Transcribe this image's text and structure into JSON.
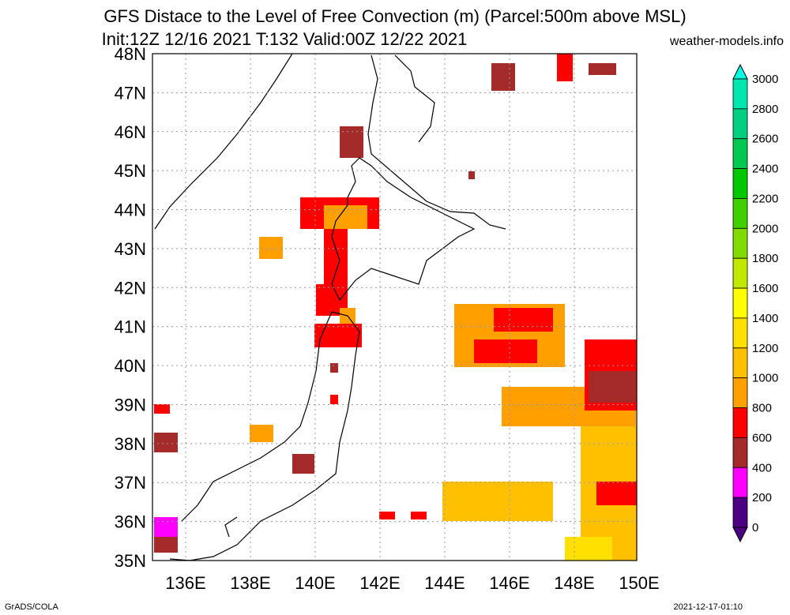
{
  "title_line1": "GFS Distace to the Level of Free Convection (m) (Parcel:500m above MSL)",
  "title_line2": "Init:12Z 12/16 2021 T:132 Valid:00Z 12/22 2021",
  "site": "weather-models.info",
  "footer_left": "GrADS/COLA",
  "footer_right": "2021-12-17-01:10",
  "lat_labels": [
    "48N",
    "47N",
    "46N",
    "45N",
    "44N",
    "43N",
    "42N",
    "41N",
    "40N",
    "39N",
    "38N",
    "37N",
    "36N",
    "35N"
  ],
  "lon_labels": [
    "136E",
    "138E",
    "140E",
    "142E",
    "144E",
    "146E",
    "148E",
    "150E"
  ],
  "colorbar": {
    "labels": [
      "3000",
      "2800",
      "2600",
      "2400",
      "2200",
      "2000",
      "1800",
      "1600",
      "1400",
      "1200",
      "1000",
      "800",
      "600",
      "400",
      "200",
      "0"
    ],
    "colors": [
      "#00ffe0",
      "#00e6b0",
      "#00d080",
      "#00c850",
      "#00c800",
      "#40d000",
      "#80dc00",
      "#c0e800",
      "#ffff00",
      "#ffe000",
      "#ffc000",
      "#ffa000",
      "#ff0000",
      "#a52a2a",
      "#ff00ff",
      "#4b0082"
    ]
  },
  "regions": [
    {
      "name": "west-edge-36N",
      "color": "#ff00ff"
    },
    {
      "name": "hokkaido-west",
      "color": "#ff0000"
    },
    {
      "name": "pacific-east",
      "color": "#ffa000"
    },
    {
      "name": "pacific-east-39N",
      "color": "#ff0000"
    },
    {
      "name": "south-east-35N",
      "color": "#ffe000"
    }
  ]
}
